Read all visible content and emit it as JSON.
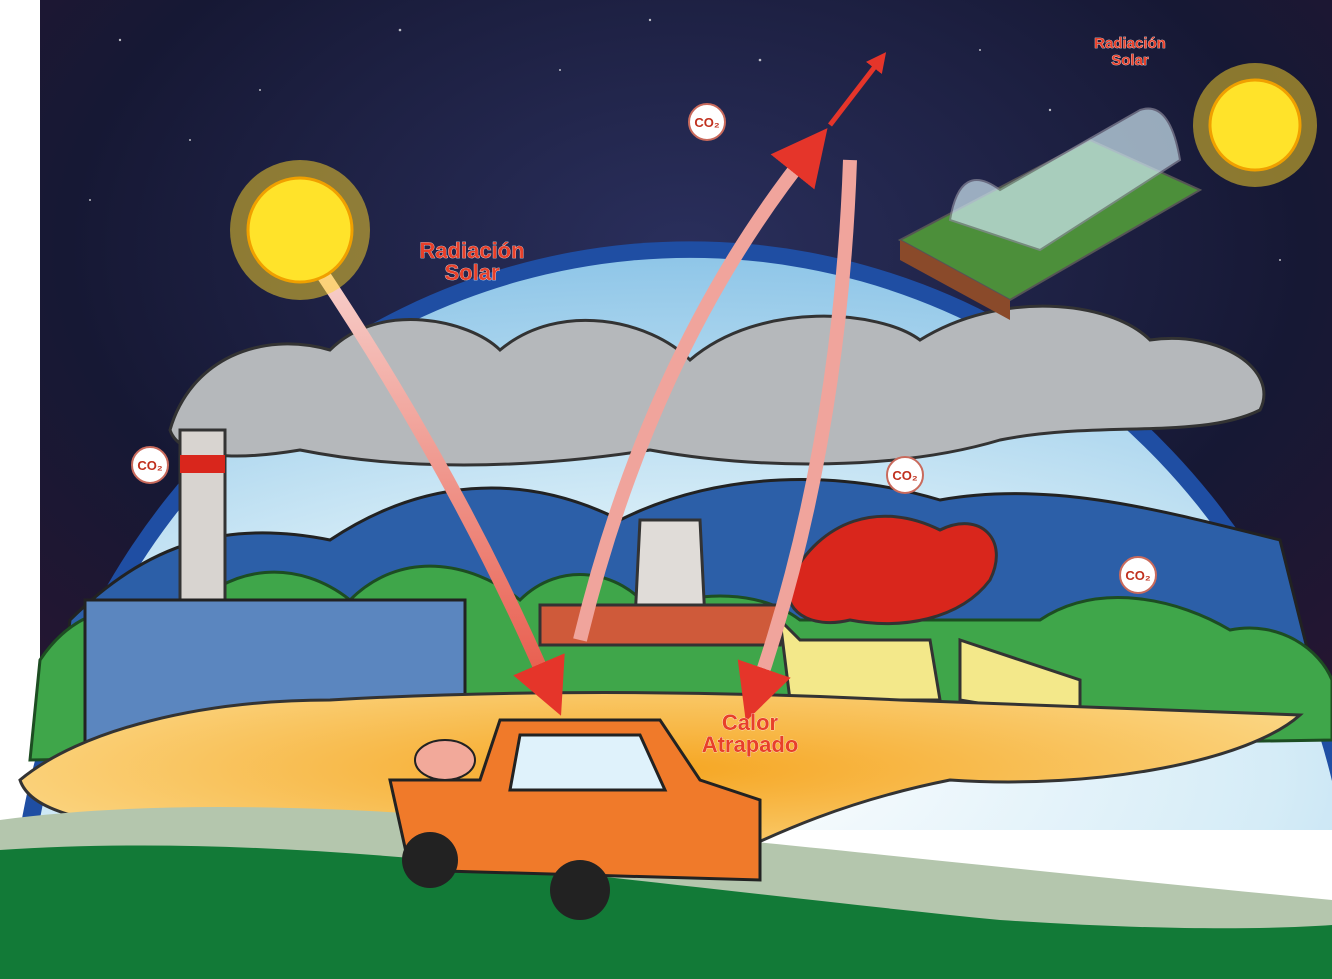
{
  "labels": {
    "solar_main": [
      "Radiación",
      "Solar"
    ],
    "solar_corner": [
      "Radiación",
      "Solar"
    ],
    "trapped_heat": [
      "Calor",
      "Atrapado"
    ],
    "co2": [
      "CO₂",
      "CO₂",
      "CO₂",
      "CO₂"
    ]
  }
}
